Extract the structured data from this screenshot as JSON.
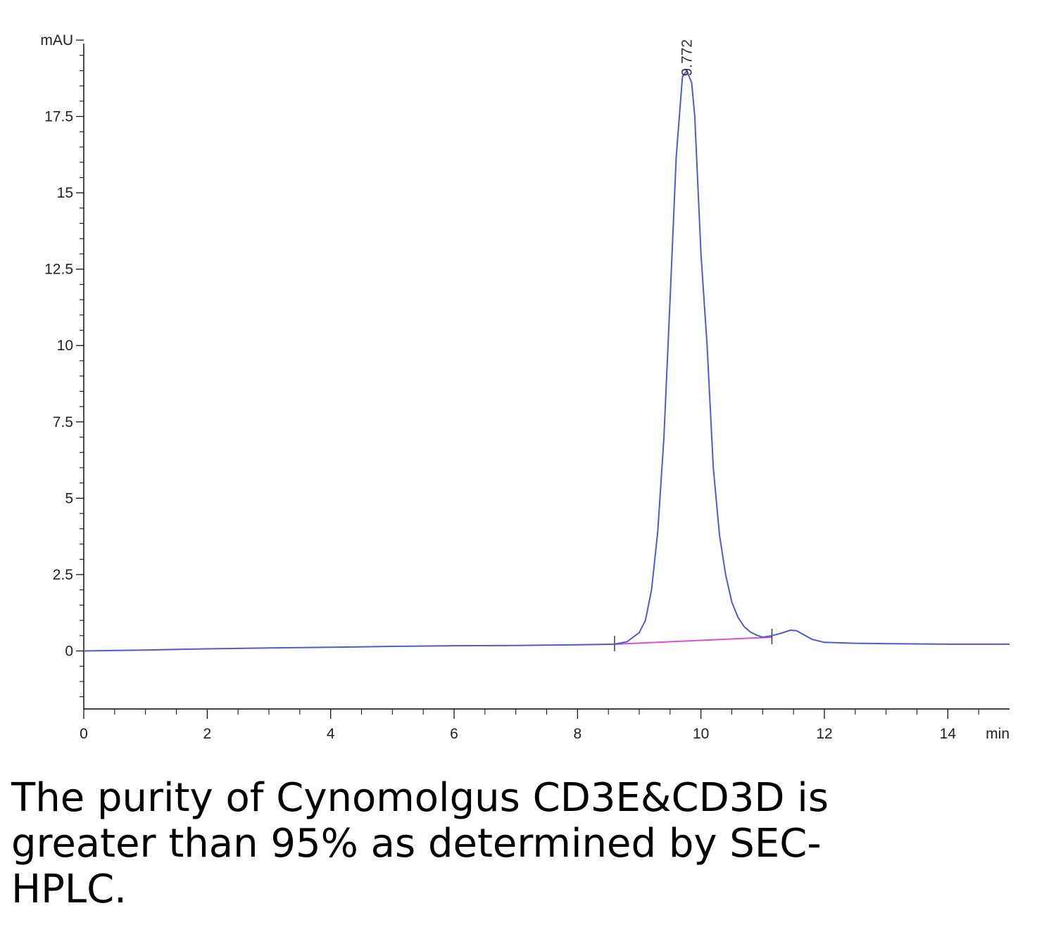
{
  "chart_data": {
    "type": "line",
    "title": "",
    "xlabel": "",
    "ylabel": "",
    "x_unit": "min",
    "y_unit": "mAU",
    "xlim": [
      0,
      15
    ],
    "ylim": [
      -1.9,
      20
    ],
    "x_ticks": [
      0,
      2,
      4,
      6,
      8,
      10,
      12,
      14
    ],
    "x_tick_labels": [
      "0",
      "2",
      "4",
      "6",
      "8",
      "10",
      "12",
      "14"
    ],
    "y_ticks": [
      0,
      2.5,
      5,
      7.5,
      10,
      12.5,
      15,
      17.5
    ],
    "y_tick_labels": [
      "0",
      "2.5",
      "5",
      "7.5",
      "10",
      "12.5",
      "15",
      "17.5"
    ],
    "grid": false,
    "series": [
      {
        "color": "#4f5ad6",
        "x": [
          0.0,
          1.0,
          2.0,
          3.0,
          4.0,
          5.0,
          6.0,
          7.0,
          8.0,
          8.6,
          8.8,
          9.0,
          9.1,
          9.2,
          9.3,
          9.4,
          9.5,
          9.6,
          9.7,
          9.77,
          9.85,
          9.9,
          10.0,
          10.1,
          10.2,
          10.3,
          10.4,
          10.5,
          10.6,
          10.7,
          10.8,
          10.9,
          11.0,
          11.15,
          11.3,
          11.45,
          11.55,
          11.65,
          11.8,
          12.0,
          12.5,
          13.0,
          14.0,
          15.0
        ],
        "y": [
          0.0,
          0.03,
          0.07,
          0.1,
          0.12,
          0.15,
          0.17,
          0.18,
          0.2,
          0.22,
          0.3,
          0.6,
          1.0,
          2.0,
          3.9,
          7.0,
          11.5,
          16.2,
          18.8,
          19.0,
          18.6,
          17.5,
          13.0,
          10.0,
          6.0,
          3.8,
          2.5,
          1.6,
          1.1,
          0.8,
          0.62,
          0.52,
          0.45,
          0.5,
          0.58,
          0.68,
          0.66,
          0.55,
          0.38,
          0.28,
          0.25,
          0.24,
          0.22,
          0.22
        ]
      }
    ],
    "baseline": {
      "color": "#e14fd1",
      "x": [
        8.6,
        11.15
      ],
      "y": [
        0.22,
        0.45
      ]
    },
    "integration_marks": [
      8.6,
      11.15
    ],
    "peaks": [
      {
        "x": 9.77,
        "y": 19.0,
        "label": "9.772"
      }
    ]
  },
  "caption": {
    "lines": [
      "The purity of Cynomolgus CD3E&CD3D is",
      "greater than 95% as determined by SEC-",
      "HPLC."
    ]
  }
}
